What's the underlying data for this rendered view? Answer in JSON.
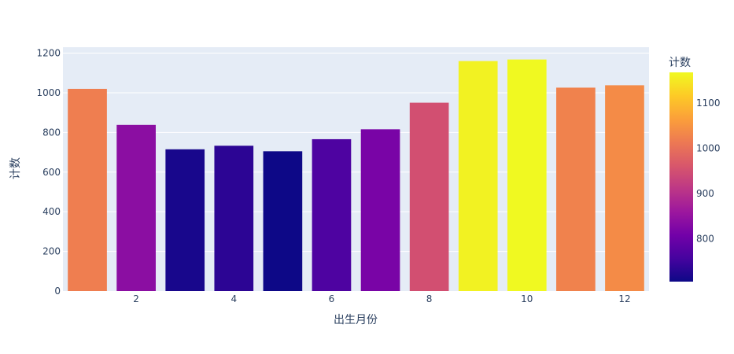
{
  "chart_data": {
    "type": "bar",
    "x": [
      1,
      2,
      3,
      4,
      5,
      6,
      7,
      8,
      9,
      10,
      11,
      12
    ],
    "values": [
      1020,
      838,
      715,
      733,
      705,
      766,
      816,
      950,
      1160,
      1168,
      1026,
      1038
    ],
    "xlabel": "出生月份",
    "ylabel": "计数",
    "x_ticks": [
      2,
      4,
      6,
      8,
      10,
      12
    ],
    "y_ticks": [
      0,
      200,
      400,
      600,
      800,
      1000,
      1200
    ],
    "ylim": [
      0,
      1230
    ],
    "grid": true,
    "colorscale": "plasma",
    "colorbar": {
      "title": "计数",
      "ticks": [
        800,
        900,
        1000,
        1100
      ],
      "range": [
        705,
        1168
      ]
    }
  }
}
